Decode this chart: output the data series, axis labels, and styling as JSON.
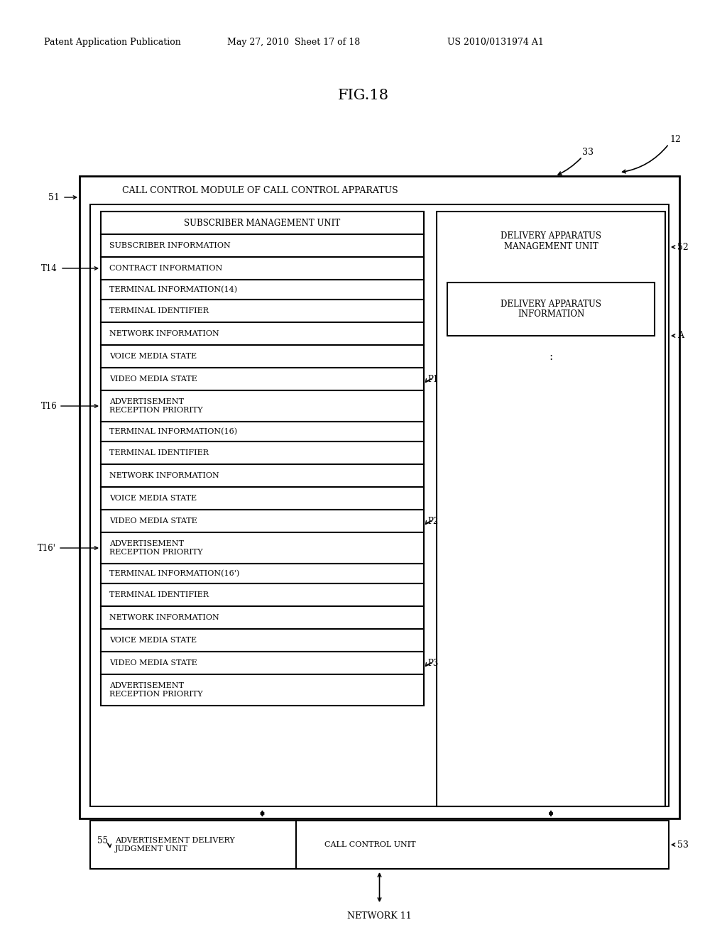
{
  "title": "FIG.18",
  "header_left": "Patent Application Publication",
  "header_mid": "May 27, 2010  Sheet 17 of 18",
  "header_right": "US 2010/0131974 A1",
  "bg_color": "#ffffff",
  "fig_label": "12",
  "module_label": "33",
  "outer_box_label": "51",
  "outer_box_title": "CALL CONTROL MODULE OF CALL CONTROL APPARATUS",
  "sub_mgmt_title": "SUBSCRIBER MANAGEMENT UNIT",
  "delivery_mgmt_title": "DELIVERY APPARATUS\nMANAGEMENT UNIT",
  "delivery_mgmt_label": "52",
  "delivery_info_title": "DELIVERY APPARATUS\nINFORMATION",
  "subscriber_info": "SUBSCRIBER INFORMATION",
  "contract_info": "CONTRACT INFORMATION",
  "t14_label": "T14",
  "terminal_info_14": "TERMINAL INFORMATION(14)",
  "terminal_id_1": "TERMINAL IDENTIFIER",
  "network_info_1": "NETWORK INFORMATION",
  "voice_media_1": "VOICE MEDIA STATE",
  "video_media_1": "VIDEO MEDIA STATE",
  "adv_reception_1": "ADVERTISEMENT\nRECEPTION PRIORITY",
  "p1_label": "P1",
  "t16_label": "T16",
  "terminal_info_16": "TERMINAL INFORMATION(16)",
  "terminal_id_2": "TERMINAL IDENTIFIER",
  "network_info_2": "NETWORK INFORMATION",
  "voice_media_2": "VOICE MEDIA STATE",
  "video_media_2": "VIDEO MEDIA STATE",
  "adv_reception_2": "ADVERTISEMENT\nRECEPTION PRIORITY",
  "p2_label": "P2",
  "t16p_label": "T16'",
  "terminal_info_16p": "TERMINAL INFORMATION(16')",
  "terminal_id_3": "TERMINAL IDENTIFIER",
  "network_info_3": "NETWORK INFORMATION",
  "voice_media_3": "VOICE MEDIA STATE",
  "video_media_3": "VIDEO MEDIA STATE",
  "adv_reception_3": "ADVERTISEMENT\nRECEPTION PRIORITY",
  "p3_label": "P3",
  "bottom_box_label": "53",
  "adv_delivery_label": "55",
  "adv_delivery_title": "ADVERTISEMENT DELIVERY\nJUDGMENT UNIT",
  "call_control_title": "CALL CONTROL UNIT",
  "network_label": "NETWORK 11",
  "A_label": "A",
  "colon": ":"
}
